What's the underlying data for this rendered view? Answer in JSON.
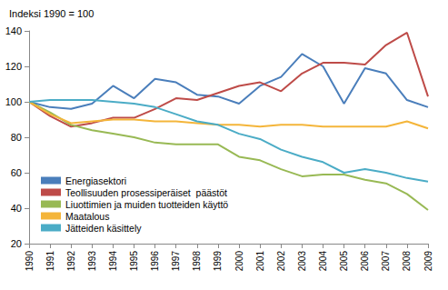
{
  "chart_data": {
    "type": "line",
    "ylabel": "Indeksi 1990 = 100",
    "categories": [
      "1990",
      "1991",
      "1992",
      "1993",
      "1994",
      "1995",
      "1996",
      "1997",
      "1998",
      "1999",
      "2000",
      "2001",
      "2002",
      "2003",
      "2004",
      "2005",
      "2006",
      "2007",
      "2008",
      "2009"
    ],
    "series": [
      {
        "name": "Energiasektori",
        "color": "#4a7ebb",
        "values": [
          100,
          97,
          96,
          99,
          109,
          102,
          113,
          111,
          104,
          103,
          99,
          109,
          114,
          127,
          120,
          99,
          119,
          116,
          101,
          97
        ]
      },
      {
        "name": "Teollisuuden prosessiperäiset  päästöt",
        "color": "#be4b48",
        "values": [
          100,
          92,
          86,
          88,
          91,
          91,
          96,
          102,
          101,
          105,
          109,
          111,
          106,
          116,
          122,
          122,
          121,
          132,
          139,
          103
        ]
      },
      {
        "name": "Liuottimien ja muiden tuotteiden käyttö",
        "color": "#98b954",
        "values": [
          100,
          94,
          87,
          84,
          82,
          80,
          77,
          76,
          76,
          76,
          69,
          67,
          62,
          58,
          59,
          59,
          56,
          54,
          48,
          39
        ]
      },
      {
        "name": "Maatalous",
        "color": "#f4b53a",
        "values": [
          100,
          93,
          88,
          89,
          90,
          90,
          89,
          89,
          88,
          87,
          87,
          86,
          87,
          87,
          86,
          86,
          86,
          86,
          89,
          85
        ]
      },
      {
        "name": "Jätteiden käsittely",
        "color": "#4bacc6",
        "values": [
          100,
          101,
          101,
          101,
          100,
          99,
          97,
          93,
          89,
          87,
          82,
          79,
          73,
          69,
          66,
          60,
          62,
          60,
          57,
          55
        ]
      }
    ],
    "ylim": [
      20,
      140
    ],
    "yticks": [
      20,
      40,
      60,
      80,
      100,
      120,
      140
    ],
    "grid": false,
    "legend": "lower left"
  }
}
